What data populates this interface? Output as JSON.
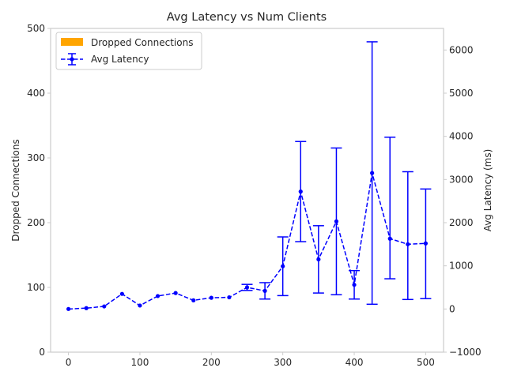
{
  "chart_data": {
    "type": "line",
    "title": "Avg Latency vs Num Clients",
    "xlabel": "",
    "ylabel_left": "Dropped Connections",
    "ylabel_right": "Avg Latency (ms)",
    "xlim": [
      -25,
      525
    ],
    "ylim_left": [
      0,
      500
    ],
    "ylim_right": [
      -1000,
      6500
    ],
    "xticks": [
      0,
      100,
      200,
      300,
      400,
      500
    ],
    "yticks_left": [
      0,
      100,
      200,
      300,
      400,
      500
    ],
    "yticks_right": [
      -1000,
      0,
      1000,
      2000,
      3000,
      4000,
      5000,
      6000
    ],
    "grid": false,
    "legend_position": "upper left",
    "colors": {
      "bar": "#FFA500",
      "line": "#0000FF",
      "axes": "#CCCCCC",
      "text": "#262626"
    },
    "legend": [
      {
        "label": "Dropped Connections",
        "kind": "bar"
      },
      {
        "label": "Avg Latency",
        "kind": "errorbar-line"
      }
    ],
    "series": [
      {
        "name": "Dropped Connections",
        "axis": "left",
        "type": "bar",
        "x": [
          0,
          25,
          50,
          75,
          100,
          125,
          150,
          175,
          200,
          225,
          250,
          275,
          300,
          325,
          350,
          375,
          400,
          425,
          450,
          475,
          500
        ],
        "values": [
          0,
          0,
          0,
          0,
          0,
          0,
          0,
          0,
          0,
          0,
          0,
          0,
          0,
          0,
          0,
          0,
          0,
          0,
          0,
          0,
          0
        ]
      },
      {
        "name": "Avg Latency",
        "axis": "right",
        "type": "line",
        "x": [
          0,
          25,
          50,
          75,
          100,
          125,
          150,
          175,
          200,
          225,
          250,
          275,
          300,
          325,
          350,
          375,
          400,
          425,
          450,
          475,
          500
        ],
        "values": [
          0,
          20,
          60,
          350,
          80,
          300,
          370,
          200,
          260,
          270,
          500,
          420,
          990,
          2720,
          1150,
          2030,
          560,
          3150,
          1630,
          1500,
          1520
        ],
        "err_low": [
          0,
          0,
          40,
          320,
          60,
          270,
          330,
          170,
          220,
          230,
          430,
          230,
          310,
          1560,
          370,
          330,
          230,
          110,
          700,
          220,
          240
        ],
        "err_high": [
          0,
          0,
          40,
          320,
          60,
          270,
          330,
          170,
          220,
          230,
          570,
          610,
          1670,
          3880,
          1930,
          3730,
          890,
          6190,
          3980,
          3180,
          2780
        ]
      }
    ]
  }
}
